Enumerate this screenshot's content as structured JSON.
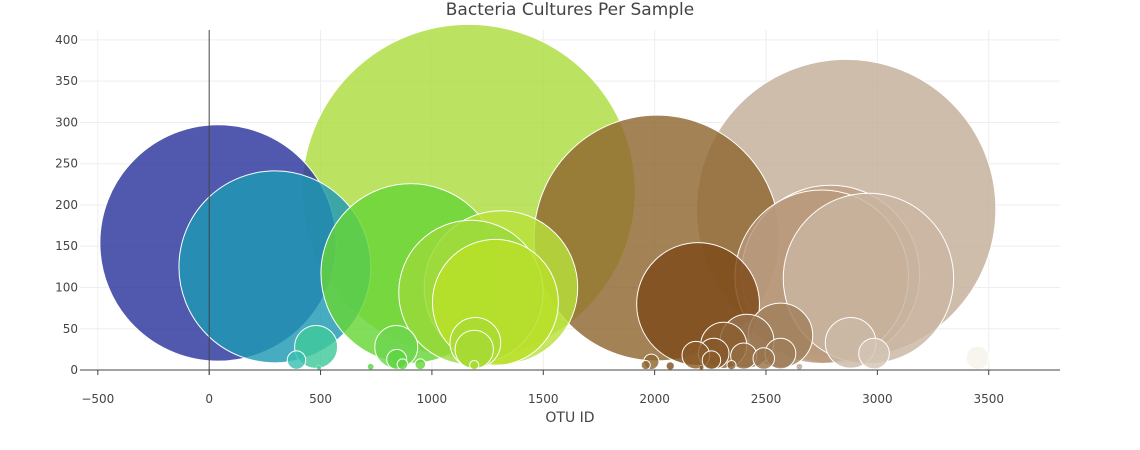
{
  "chart_data": {
    "type": "scatter",
    "title": "Bacteria Cultures Per Sample",
    "xlabel": "OTU ID",
    "ylabel": "",
    "xlim": [
      -580,
      3820
    ],
    "ylim": [
      -6,
      412
    ],
    "x_ticks": [
      -500,
      0,
      500,
      1000,
      1500,
      2000,
      2500,
      3000,
      3500
    ],
    "y_ticks": [
      0,
      50,
      100,
      150,
      200,
      250,
      300,
      350,
      400
    ],
    "grid": true,
    "legend": "none",
    "series": [
      {
        "points": [
          {
            "x": 40,
            "y": 154,
            "size": 154,
            "color": "#2a349c"
          },
          {
            "x": 295,
            "y": 125,
            "size": 125,
            "color": "#1f99b5"
          },
          {
            "x": 480,
            "y": 28,
            "size": 28,
            "color": "#3fc99a"
          },
          {
            "x": 392,
            "y": 12,
            "size": 12,
            "color": "#39c0b2"
          },
          {
            "x": 493,
            "y": 3,
            "size": 3,
            "color": "#3ec99b"
          },
          {
            "x": 840,
            "y": 28,
            "size": 28,
            "color": "#6ed64e"
          },
          {
            "x": 905,
            "y": 117,
            "size": 117,
            "color": "#67d637"
          },
          {
            "x": 842,
            "y": 13,
            "size": 13,
            "color": "#5ed642"
          },
          {
            "x": 868,
            "y": 7,
            "size": 7,
            "color": "#62d63c"
          },
          {
            "x": 948,
            "y": 7,
            "size": 7,
            "color": "#69d637"
          },
          {
            "x": 725,
            "y": 4,
            "size": 4,
            "color": "#5ad44a"
          },
          {
            "x": 1165,
            "y": 217,
            "size": 217,
            "color": "#acdc3e"
          },
          {
            "x": 1175,
            "y": 94,
            "size": 94,
            "color": "#9ad93c"
          },
          {
            "x": 1310,
            "y": 100,
            "size": 100,
            "color": "#b8e03a"
          },
          {
            "x": 1285,
            "y": 82,
            "size": 82,
            "color": "#b9df28"
          },
          {
            "x": 1195,
            "y": 33,
            "size": 33,
            "color": "#aadb33"
          },
          {
            "x": 1190,
            "y": 25,
            "size": 25,
            "color": "#a6da33"
          },
          {
            "x": 1190,
            "y": 6,
            "size": 6,
            "color": "#a8db34"
          },
          {
            "x": 2010,
            "y": 160,
            "size": 160,
            "color": "#8f6630"
          },
          {
            "x": 2195,
            "y": 80,
            "size": 80,
            "color": "#7e4a1a"
          },
          {
            "x": 2185,
            "y": 18,
            "size": 18,
            "color": "#8a5c2a"
          },
          {
            "x": 2265,
            "y": 20,
            "size": 20,
            "color": "#86582a"
          },
          {
            "x": 2310,
            "y": 30,
            "size": 30,
            "color": "#8a5f30"
          },
          {
            "x": 2255,
            "y": 12,
            "size": 12,
            "color": "#8a5c2a"
          },
          {
            "x": 2400,
            "y": 17,
            "size": 17,
            "color": "#946c40"
          },
          {
            "x": 2415,
            "y": 35,
            "size": 35,
            "color": "#987450"
          },
          {
            "x": 2490,
            "y": 14,
            "size": 14,
            "color": "#98744c"
          },
          {
            "x": 2565,
            "y": 20,
            "size": 20,
            "color": "#9e7c58"
          },
          {
            "x": 2565,
            "y": 42,
            "size": 42,
            "color": "#a0805c"
          },
          {
            "x": 1960,
            "y": 6,
            "size": 6,
            "color": "#8e6632"
          },
          {
            "x": 1985,
            "y": 10,
            "size": 10,
            "color": "#8e6632"
          },
          {
            "x": 2070,
            "y": 5,
            "size": 5,
            "color": "#7e5021"
          },
          {
            "x": 2210,
            "y": 3,
            "size": 3,
            "color": "#7e5021"
          },
          {
            "x": 2345,
            "y": 6,
            "size": 6,
            "color": "#8a6030"
          },
          {
            "x": 2750,
            "y": 113,
            "size": 113,
            "color": "#b8987a"
          },
          {
            "x": 2790,
            "y": 116,
            "size": 116,
            "color": "#bea084"
          },
          {
            "x": 2860,
            "y": 195,
            "size": 195,
            "color": "#c5ae98"
          },
          {
            "x": 2960,
            "y": 111,
            "size": 111,
            "color": "#c9b6a2"
          },
          {
            "x": 2880,
            "y": 33,
            "size": 33,
            "color": "#cab8a6"
          },
          {
            "x": 2985,
            "y": 20,
            "size": 20,
            "color": "#d4c4b4"
          },
          {
            "x": 2650,
            "y": 4,
            "size": 4,
            "color": "#c0a58c"
          },
          {
            "x": 3450,
            "y": 15,
            "size": 15,
            "color": "#f7f2ea"
          }
        ]
      }
    ]
  }
}
